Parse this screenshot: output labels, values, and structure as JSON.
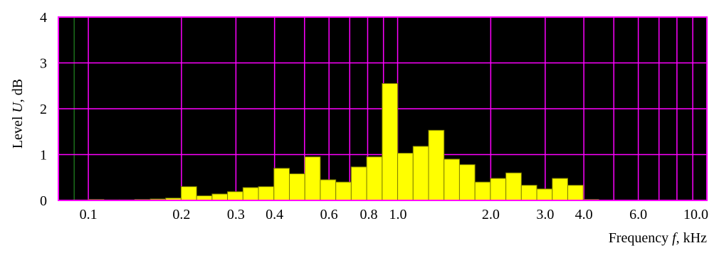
{
  "chart_data": {
    "type": "bar",
    "title": "",
    "xlabel": "Frequency f, kHz",
    "xlabel_parts": {
      "prefix": "Frequency ",
      "var": "f",
      "suffix": ", kHz"
    },
    "ylabel": "Level U, dB",
    "ylabel_parts": {
      "prefix": "Level ",
      "var": "U",
      "suffix": ", dB"
    },
    "x_scale": "log",
    "xlim": [
      0.08,
      10.0
    ],
    "ylim": [
      0,
      4
    ],
    "grid": true,
    "legend": "none",
    "x_ticks": [
      {
        "value": 0.1,
        "label": "0.1"
      },
      {
        "value": 0.2,
        "label": "0.2"
      },
      {
        "value": 0.3,
        "label": "0.3"
      },
      {
        "value": 0.4,
        "label": "0.4"
      },
      {
        "value": 0.6,
        "label": "0.6"
      },
      {
        "value": 0.8,
        "label": "0.8"
      },
      {
        "value": 1.0,
        "label": "1.0"
      },
      {
        "value": 2.0,
        "label": "2.0"
      },
      {
        "value": 3.0,
        "label": "3.0"
      },
      {
        "value": 4.0,
        "label": "4.0"
      },
      {
        "value": 6.0,
        "label": "6.0"
      },
      {
        "value": 10.0,
        "label": "10.0"
      }
    ],
    "x_gridlines": [
      0.1,
      0.2,
      0.3,
      0.4,
      0.5,
      0.6,
      0.7,
      0.8,
      0.9,
      1.0,
      2.0,
      3.0,
      4.0,
      5.0,
      6.0,
      7.0,
      8.0,
      9.0
    ],
    "x_minor_gridlines": [
      0.08,
      0.09
    ],
    "y_ticks": [
      0,
      1,
      2,
      3,
      4
    ],
    "bars": [
      {
        "lo": 0.0891,
        "hi": 0.1,
        "value": 0.0
      },
      {
        "lo": 0.1,
        "hi": 0.1122,
        "value": 0.02
      },
      {
        "lo": 0.1122,
        "hi": 0.1259,
        "value": 0.01
      },
      {
        "lo": 0.1259,
        "hi": 0.1413,
        "value": 0.01
      },
      {
        "lo": 0.1413,
        "hi": 0.1585,
        "value": 0.02
      },
      {
        "lo": 0.1585,
        "hi": 0.1778,
        "value": 0.03
      },
      {
        "lo": 0.1778,
        "hi": 0.1995,
        "value": 0.05
      },
      {
        "lo": 0.1995,
        "hi": 0.2239,
        "value": 0.3
      },
      {
        "lo": 0.2239,
        "hi": 0.2512,
        "value": 0.1
      },
      {
        "lo": 0.2512,
        "hi": 0.2818,
        "value": 0.14
      },
      {
        "lo": 0.2818,
        "hi": 0.3162,
        "value": 0.19
      },
      {
        "lo": 0.3162,
        "hi": 0.3548,
        "value": 0.28
      },
      {
        "lo": 0.3548,
        "hi": 0.3981,
        "value": 0.3
      },
      {
        "lo": 0.3981,
        "hi": 0.4467,
        "value": 0.7
      },
      {
        "lo": 0.4467,
        "hi": 0.5012,
        "value": 0.58
      },
      {
        "lo": 0.5012,
        "hi": 0.5623,
        "value": 0.95
      },
      {
        "lo": 0.5623,
        "hi": 0.631,
        "value": 0.45
      },
      {
        "lo": 0.631,
        "hi": 0.7079,
        "value": 0.4
      },
      {
        "lo": 0.7079,
        "hi": 0.7943,
        "value": 0.73
      },
      {
        "lo": 0.7943,
        "hi": 0.8913,
        "value": 0.95
      },
      {
        "lo": 0.8913,
        "hi": 1.0,
        "value": 2.55
      },
      {
        "lo": 1.0,
        "hi": 1.122,
        "value": 1.03
      },
      {
        "lo": 1.122,
        "hi": 1.2589,
        "value": 1.18
      },
      {
        "lo": 1.2589,
        "hi": 1.4125,
        "value": 1.53
      },
      {
        "lo": 1.4125,
        "hi": 1.5849,
        "value": 0.9
      },
      {
        "lo": 1.5849,
        "hi": 1.7783,
        "value": 0.78
      },
      {
        "lo": 1.7783,
        "hi": 1.9953,
        "value": 0.4
      },
      {
        "lo": 1.9953,
        "hi": 2.2387,
        "value": 0.48
      },
      {
        "lo": 2.2387,
        "hi": 2.5119,
        "value": 0.6
      },
      {
        "lo": 2.5119,
        "hi": 2.8184,
        "value": 0.33
      },
      {
        "lo": 2.8184,
        "hi": 3.1623,
        "value": 0.25
      },
      {
        "lo": 3.1623,
        "hi": 3.5481,
        "value": 0.48
      },
      {
        "lo": 3.5481,
        "hi": 3.9811,
        "value": 0.33
      },
      {
        "lo": 3.9811,
        "hi": 4.4668,
        "value": 0.02
      }
    ],
    "colors": {
      "plot_background": "#000000",
      "bar_fill": "#ffff00",
      "bar_stroke": "#808000",
      "grid": "#ff00ff",
      "minor_grid": "#1a6e1a",
      "frame": "#ff00ff"
    }
  }
}
